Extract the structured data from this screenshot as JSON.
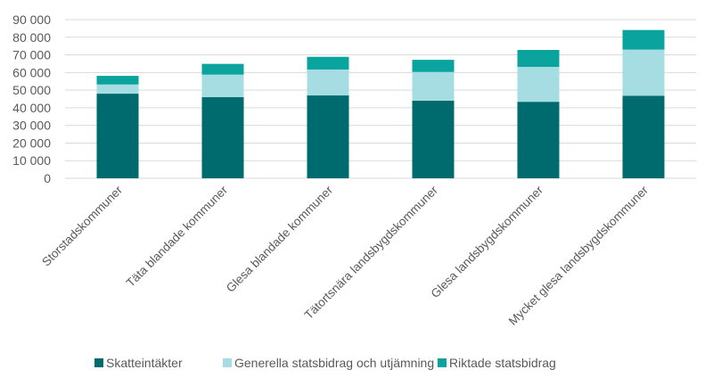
{
  "chart_data": {
    "type": "bar",
    "stacked": true,
    "title": "",
    "xlabel": "",
    "ylabel": "",
    "ylim": [
      0,
      90000
    ],
    "yticks": [
      "0",
      "10 000",
      "20 000",
      "30 000",
      "40 000",
      "50 000",
      "60 000",
      "70 000",
      "80 000",
      "90 000"
    ],
    "grid": true,
    "legend_position": "bottom",
    "categories": [
      "Storstadskommuner",
      "Täta blandade kommuner",
      "Glesa blandade kommuner",
      "Tätortsnära landsbygdskommuner",
      "Glesa landsbygdskommuner",
      "Mycket glesa landsbygdskommuner"
    ],
    "series": [
      {
        "name": "Skatteintäkter",
        "color": "#006b6e",
        "values": [
          48000,
          46000,
          47000,
          44000,
          43400,
          46800
        ]
      },
      {
        "name": "Generella statsbidrag och utjämning",
        "color": "#a6dde3",
        "values": [
          5200,
          12800,
          14700,
          16300,
          19800,
          26200
        ]
      },
      {
        "name": "Riktade statsbidrag",
        "color": "#0aa39e",
        "values": [
          4900,
          6100,
          7200,
          6900,
          9600,
          11100
        ]
      }
    ]
  }
}
